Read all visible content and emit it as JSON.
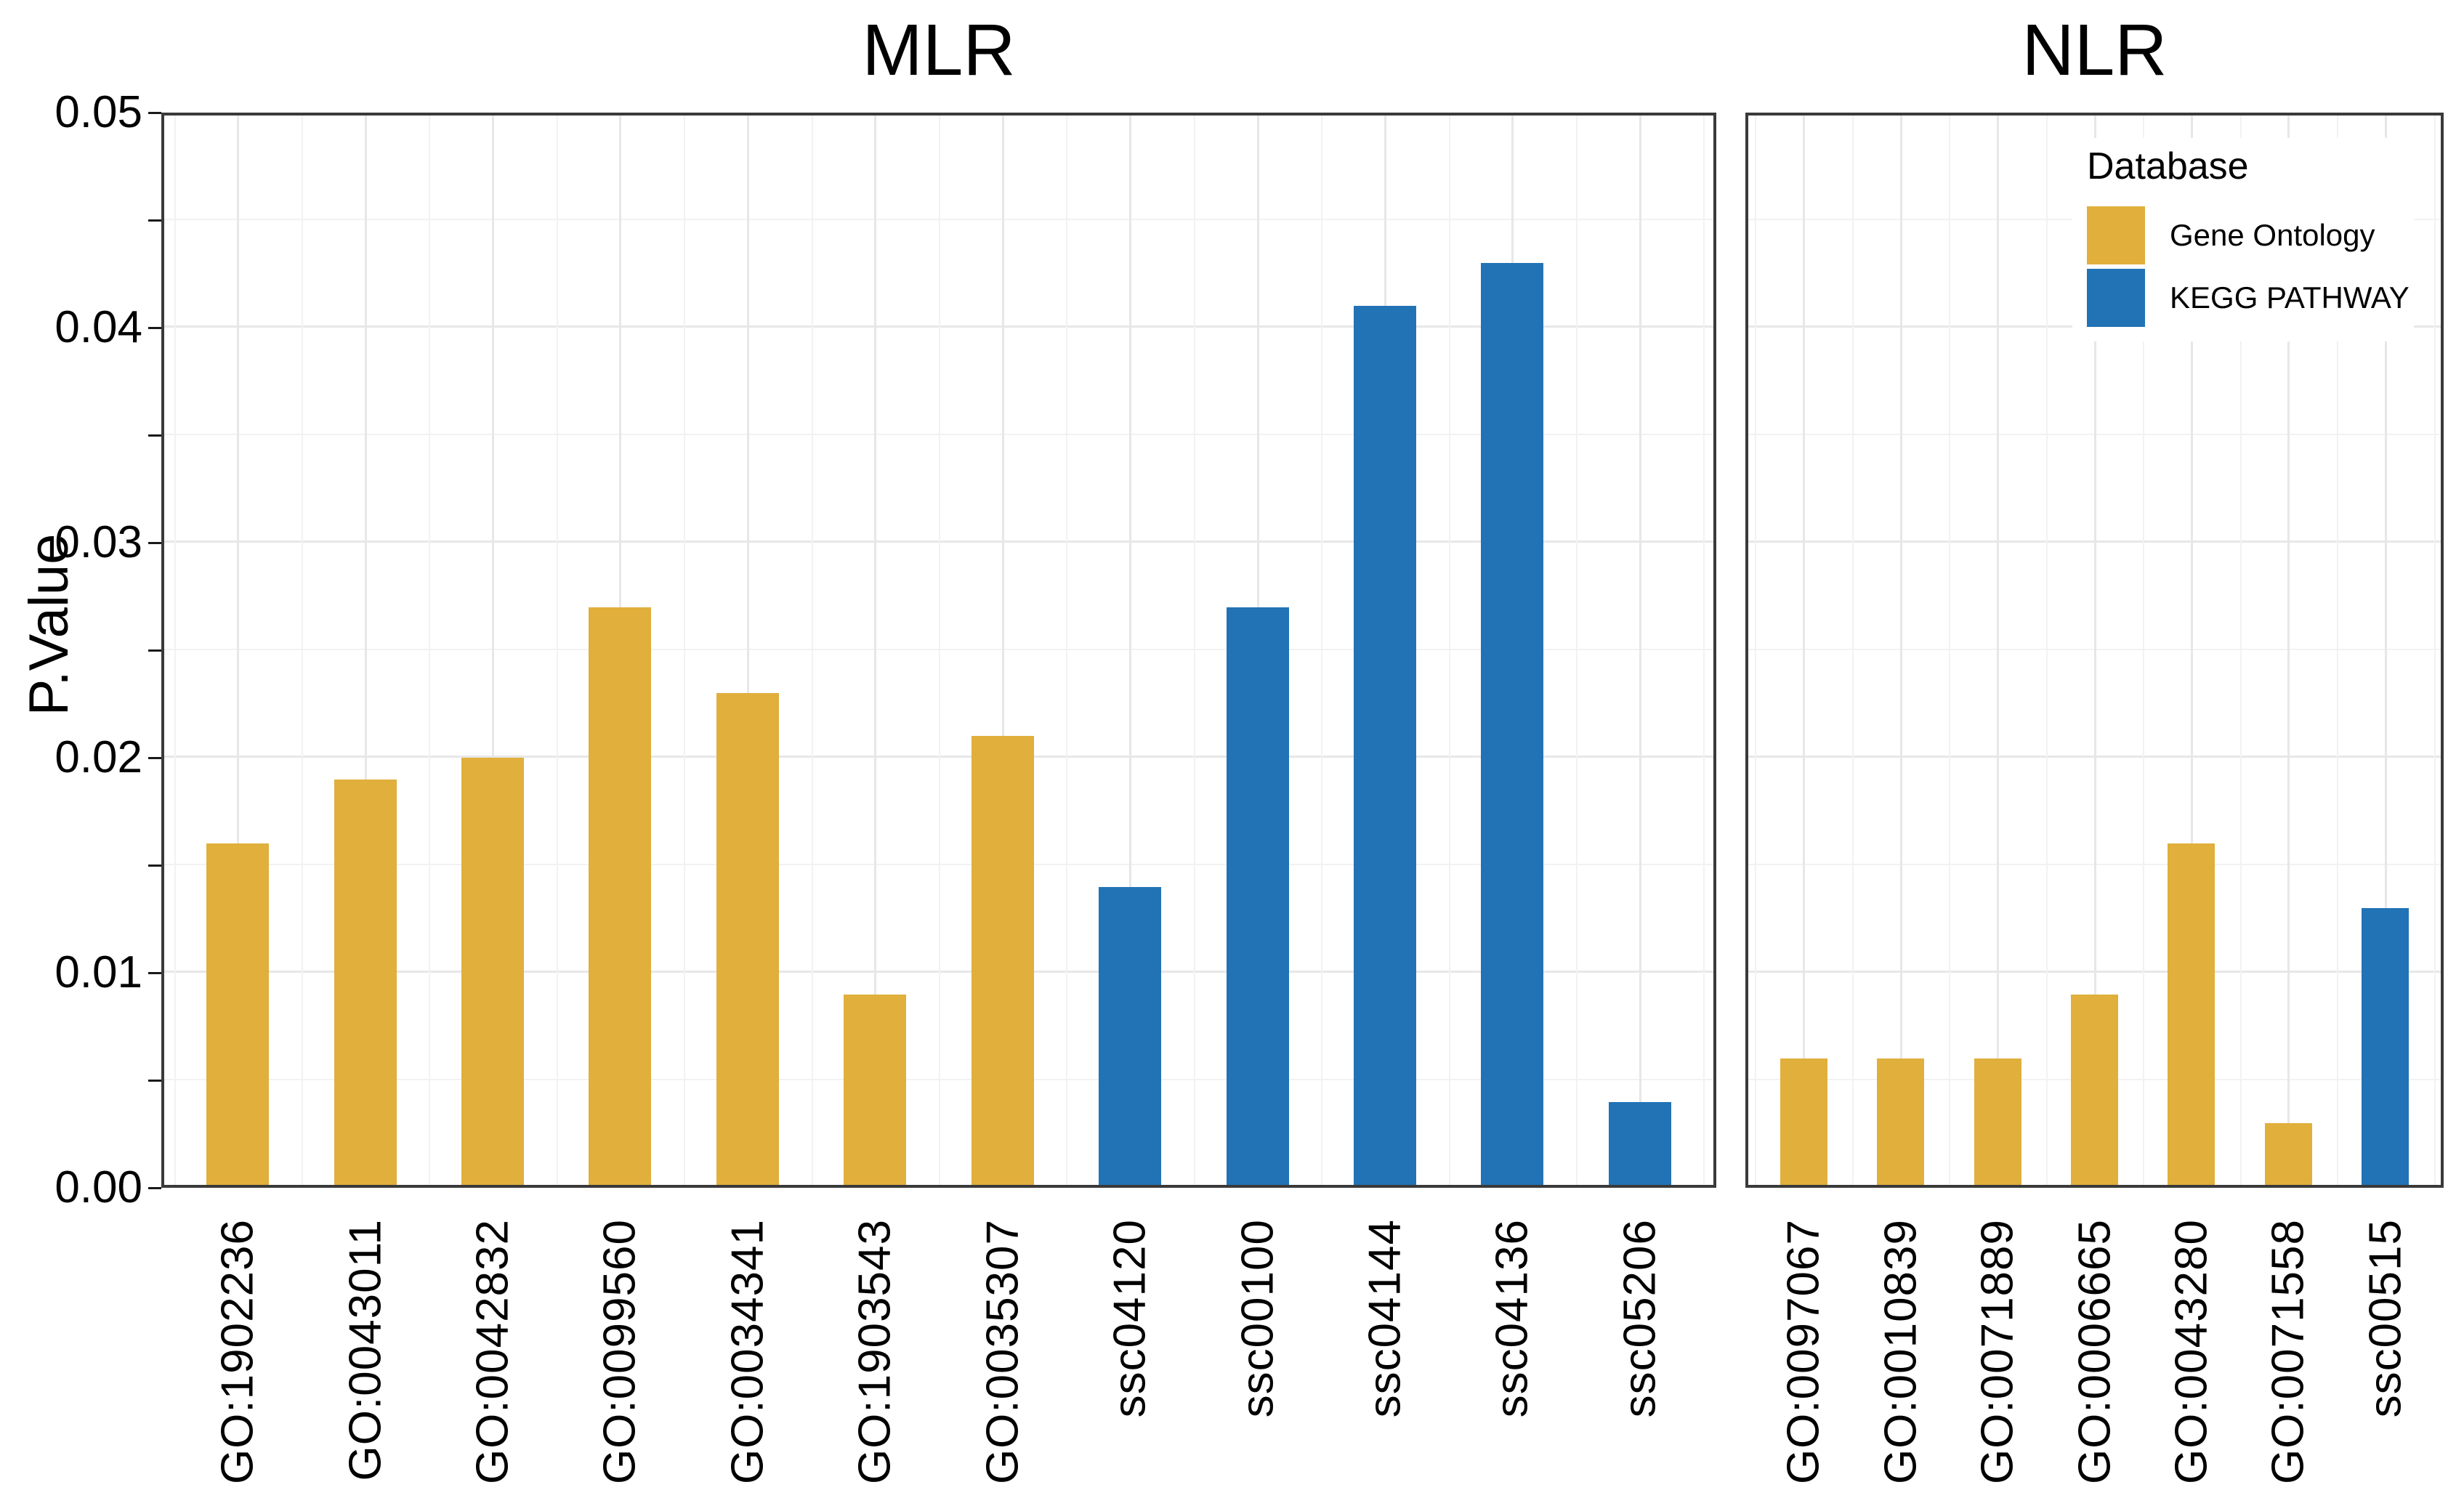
{
  "figure": {
    "y_axis_title": "P.Value",
    "legend": {
      "title": "Database",
      "entries": [
        {
          "label": "Gene Ontology",
          "color": "#E0AF3C"
        },
        {
          "label": "KEGG PATHWAY",
          "color": "#2173B5"
        }
      ]
    },
    "colors": {
      "gene_ontology_bar": "#E0AF3C",
      "kegg_pathway_bar": "#2173B5",
      "panel_border": "#3A3A3A",
      "grid_major": "#E7E7E7",
      "grid_minor": "#F2F2F2",
      "tick": "#1A1A1A",
      "text": "#000000",
      "background": "#FFFFFF"
    }
  },
  "chart_data": [
    {
      "type": "bar",
      "facet": "MLR",
      "xlabel": "",
      "ylabel": "P.Value",
      "ylim": [
        0,
        0.05
      ],
      "y_tick_labels": [
        "0.00",
        "0.01",
        "0.02",
        "0.03",
        "0.04",
        "0.05"
      ],
      "grid": "major and minor, horizontal and vertical, light gray on white",
      "legend_position": "none",
      "categories": [
        "GO:1902236",
        "GO:0043011",
        "GO:0042832",
        "GO:0099560",
        "GO:0034341",
        "GO:1903543",
        "GO:0035307",
        "ssc04120",
        "ssc00100",
        "ssc04144",
        "ssc04136",
        "ssc05206"
      ],
      "values": [
        0.016,
        0.019,
        0.02,
        0.027,
        0.023,
        0.009,
        0.021,
        0.014,
        0.027,
        0.041,
        0.043,
        0.004
      ],
      "groups": [
        "Gene Ontology",
        "Gene Ontology",
        "Gene Ontology",
        "Gene Ontology",
        "Gene Ontology",
        "Gene Ontology",
        "Gene Ontology",
        "KEGG PATHWAY",
        "KEGG PATHWAY",
        "KEGG PATHWAY",
        "KEGG PATHWAY",
        "KEGG PATHWAY"
      ]
    },
    {
      "type": "bar",
      "facet": "NLR",
      "xlabel": "",
      "ylabel": "P.Value",
      "ylim": [
        0,
        0.05
      ],
      "y_tick_labels": [
        "0.00",
        "0.01",
        "0.02",
        "0.03",
        "0.04",
        "0.05"
      ],
      "grid": "major and minor, horizontal and vertical, light gray on white",
      "legend_position": "inside top-right",
      "categories": [
        "GO:0097067",
        "GO:0010839",
        "GO:0071889",
        "GO:0006665",
        "GO:0043280",
        "GO:0071558",
        "ssc00515"
      ],
      "values": [
        0.006,
        0.006,
        0.006,
        0.009,
        0.016,
        0.003,
        0.013
      ],
      "groups": [
        "Gene Ontology",
        "Gene Ontology",
        "Gene Ontology",
        "Gene Ontology",
        "Gene Ontology",
        "Gene Ontology",
        "KEGG PATHWAY"
      ]
    }
  ]
}
